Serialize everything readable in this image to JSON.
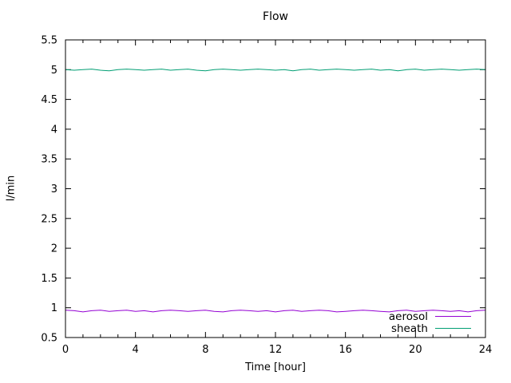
{
  "chart_data": {
    "type": "line",
    "title": "Flow",
    "xlabel": "Time [hour]",
    "ylabel": "l/min",
    "xlim": [
      0,
      24
    ],
    "ylim": [
      0.5,
      5.5
    ],
    "x_major_ticks": [
      0,
      4,
      8,
      12,
      16,
      20,
      24
    ],
    "x_minor_tick_step": 1,
    "y_ticks": [
      0.5,
      1,
      1.5,
      2,
      2.5,
      3,
      3.5,
      4,
      4.5,
      5,
      5.5
    ],
    "grid": false,
    "legend_position": "inside bottom right",
    "background_color": "#ffffff",
    "border_color": "#000000",
    "x": [
      0,
      0.5,
      1,
      1.5,
      2,
      2.5,
      3,
      3.5,
      4,
      4.5,
      5,
      5.5,
      6,
      6.5,
      7,
      7.5,
      8,
      8.5,
      9,
      9.5,
      10,
      10.5,
      11,
      11.5,
      12,
      12.5,
      13,
      13.5,
      14,
      14.5,
      15,
      15.5,
      16,
      16.5,
      17,
      17.5,
      18,
      18.5,
      19,
      19.5,
      20,
      20.5,
      21,
      21.5,
      22,
      22.5,
      23,
      23.5,
      24
    ],
    "series": [
      {
        "name": "aerosol",
        "color": "#9400d3",
        "mean": 0.95,
        "values": [
          0.96,
          0.95,
          0.93,
          0.95,
          0.96,
          0.94,
          0.95,
          0.96,
          0.94,
          0.95,
          0.93,
          0.95,
          0.96,
          0.95,
          0.94,
          0.95,
          0.96,
          0.94,
          0.93,
          0.95,
          0.96,
          0.95,
          0.94,
          0.95,
          0.93,
          0.95,
          0.96,
          0.94,
          0.95,
          0.96,
          0.95,
          0.93,
          0.94,
          0.95,
          0.96,
          0.95,
          0.94,
          0.93,
          0.95,
          0.96,
          0.94,
          0.95,
          0.96,
          0.95,
          0.94,
          0.95,
          0.93,
          0.95,
          0.96
        ]
      },
      {
        "name": "sheath",
        "color": "#009e73",
        "mean": 5.0,
        "values": [
          5.0,
          4.99,
          5.0,
          5.01,
          4.99,
          4.98,
          5.0,
          5.01,
          5.0,
          4.99,
          5.0,
          5.01,
          4.99,
          5.0,
          5.01,
          4.99,
          4.98,
          5.0,
          5.01,
          5.0,
          4.99,
          5.0,
          5.01,
          5.0,
          4.99,
          5.0,
          4.98,
          5.0,
          5.01,
          4.99,
          5.0,
          5.01,
          5.0,
          4.99,
          5.0,
          5.01,
          4.99,
          5.0,
          4.98,
          5.0,
          5.01,
          4.99,
          5.0,
          5.01,
          5.0,
          4.99,
          5.0,
          5.01,
          5.0
        ]
      }
    ]
  }
}
